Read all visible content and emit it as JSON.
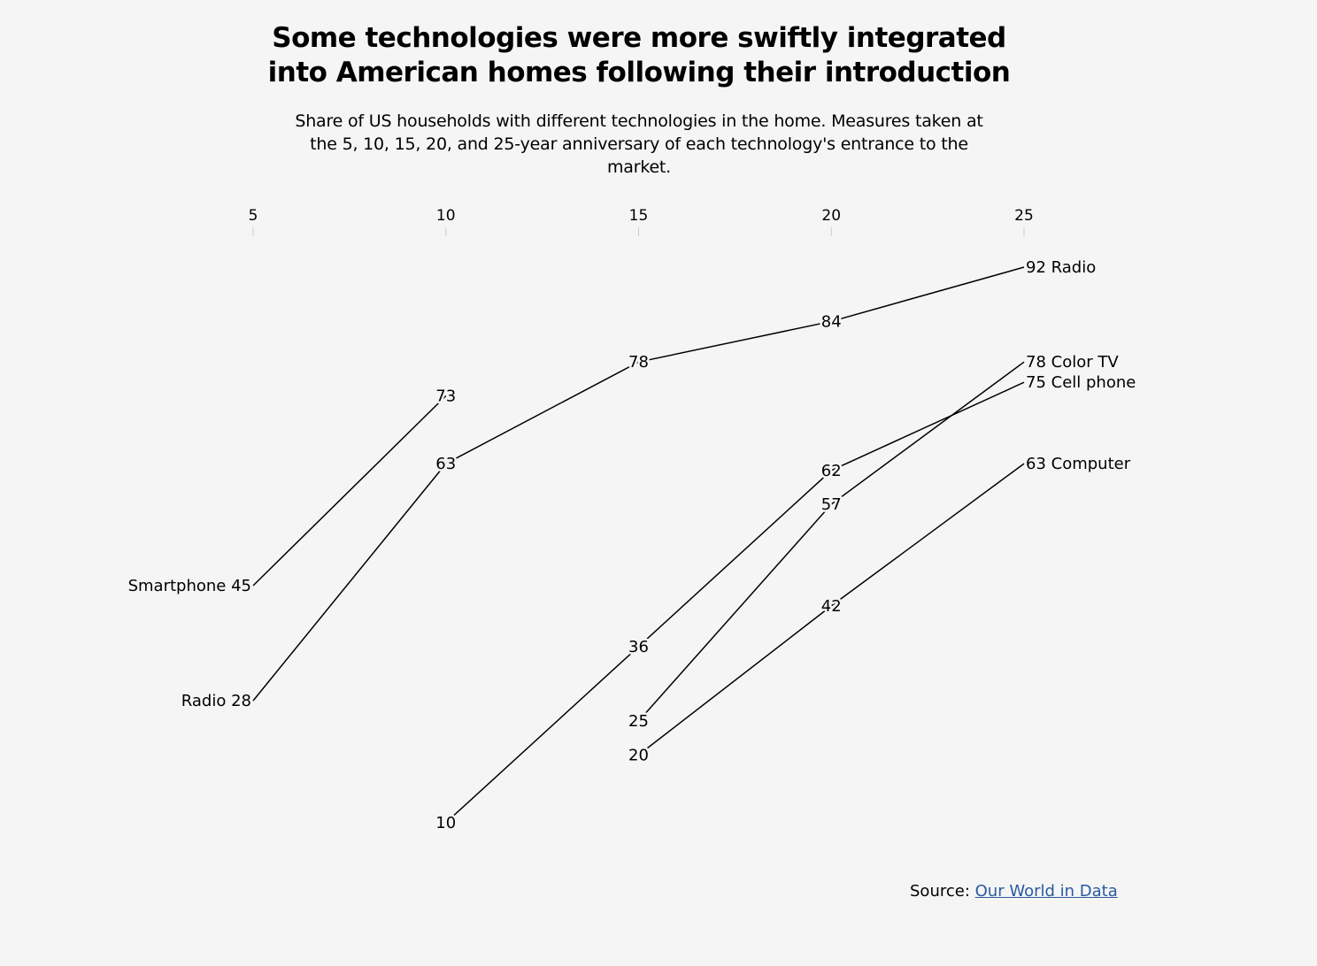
{
  "title": "Some technologies were more swiftly integrated into American homes following their introduction",
  "subtitle": "Share of US households with different technologies in the home. Measures taken at the 5, 10, 15, 20, and 25-year anniversary of each technology's entrance to the market.",
  "source": {
    "label": "Source:",
    "link_text": "Our World in Data"
  },
  "chart_data": {
    "type": "line",
    "x_ticks": [
      5,
      10,
      15,
      20,
      25
    ],
    "xlim": [
      5,
      25
    ],
    "ylim": [
      10,
      92
    ],
    "series": [
      {
        "name": "Smartphone",
        "points": [
          {
            "x": 5,
            "y": 45
          },
          {
            "x": 10,
            "y": 73
          }
        ]
      },
      {
        "name": "Radio",
        "points": [
          {
            "x": 5,
            "y": 28
          },
          {
            "x": 10,
            "y": 63
          },
          {
            "x": 15,
            "y": 78
          },
          {
            "x": 20,
            "y": 84
          },
          {
            "x": 25,
            "y": 92
          }
        ]
      },
      {
        "name": "Cell phone",
        "points": [
          {
            "x": 10,
            "y": 10
          },
          {
            "x": 15,
            "y": 36
          },
          {
            "x": 20,
            "y": 62
          },
          {
            "x": 25,
            "y": 75
          }
        ]
      },
      {
        "name": "Color TV",
        "points": [
          {
            "x": 15,
            "y": 25
          },
          {
            "x": 20,
            "y": 57
          },
          {
            "x": 25,
            "y": 78
          }
        ]
      },
      {
        "name": "Computer",
        "points": [
          {
            "x": 15,
            "y": 20
          },
          {
            "x": 20,
            "y": 42
          },
          {
            "x": 25,
            "y": 63
          }
        ]
      }
    ],
    "line_color": "#000000",
    "background": "#f5f5f5",
    "link_color": "#2a5a9e"
  }
}
